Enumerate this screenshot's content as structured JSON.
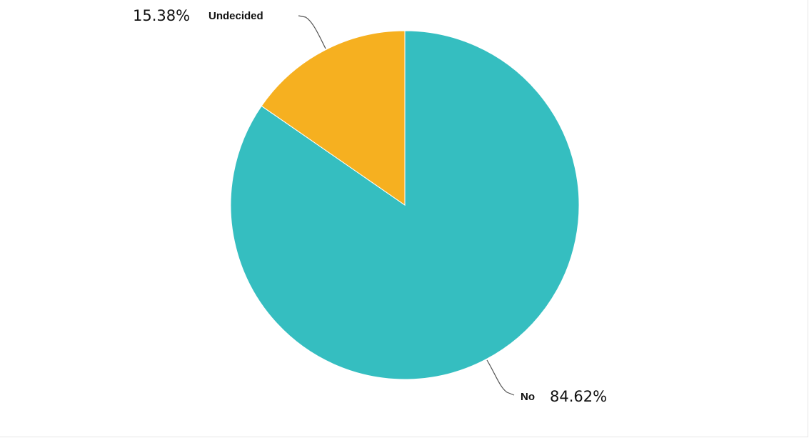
{
  "chart_data": {
    "type": "pie",
    "title": "",
    "slices": [
      {
        "label": "No",
        "value": 84.62,
        "display": "84.62%",
        "color": "#35bec0"
      },
      {
        "label": "Undecided",
        "value": 15.38,
        "display": "15.38%",
        "color": "#f6b020"
      }
    ],
    "legend": "none"
  }
}
